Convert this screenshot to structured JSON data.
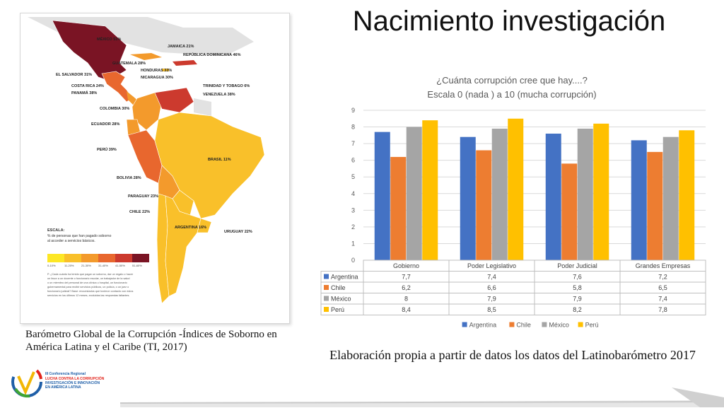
{
  "slide": {
    "title": "Nacimiento investigación",
    "map_caption": "Barómetro Global de la Corrupción -Índices de Soborno en América Latina y el Caribe (TI, 2017)",
    "source": "Elaboración propia a partir de datos los datos del Latinobarómetro 2017"
  },
  "map": {
    "labels": [
      "MÉXICO 51%",
      "JAMAICA 21%",
      "REPÚBLICA DOMINICANA 46%",
      "GUATEMALA 28%",
      "HONDURAS 33%",
      "NICARAGUA 30%",
      "EL SALVADOR 31%",
      "COSTA RICA 24%",
      "PANAMÁ 38%",
      "TRINIDAD Y TOBAGO 6%",
      "VENEZUELA 38%",
      "COLOMBIA 30%",
      "ECUADOR 28%",
      "PERÚ 39%",
      "BRASIL 11%",
      "BOLIVIA 28%",
      "PARAGUAY 23%",
      "CHILE 22%",
      "ARGENTINA 16%",
      "URUGUAY 22%"
    ],
    "legend_title": "ESCALA:",
    "legend_sub1": "% de personas que han pagado soborno",
    "legend_sub2": "al acceder a servicios básicos.",
    "legend_ticks": [
      "0-10%",
      "11-20%",
      "21-30%",
      "31-40%",
      "41-50%",
      "51-60%"
    ],
    "scale_colors": [
      "#fde725",
      "#f9c02a",
      "#f39a2c",
      "#e8672e",
      "#cc3a2e",
      "#7a1424"
    ],
    "note": [
      "P. ¿Cada cuánto ha tenido que pagar un soborno, dar un regalo o hacer",
      "un favor a un docente o funcionario escolar, un trabajador de la salud",
      "o un miembro del personal de una clínica u hospital, un funcionario",
      "gubernamental para recibir servicios públicos, un policía, o un juez o",
      "funcionario judicial? Base: encuestados que tuvieron contacto con estos",
      "servicios en los últimos 12 meses, excluidas las respuestas faltantes."
    ]
  },
  "chart_data": {
    "type": "bar",
    "title": "¿Cuánta corrupción cree que hay....?",
    "subtitle": "Escala 0 (nada ) a 10 (mucha corrupción)",
    "categories": [
      "Gobierno",
      "Poder Legislativo",
      "Poder Judicial",
      "Grandes Empresas"
    ],
    "series": [
      {
        "name": "Argentina",
        "color": "#4472c4",
        "values": [
          7.7,
          7.4,
          7.6,
          7.2
        ],
        "labels": [
          "7,7",
          "7,4",
          "7,6",
          "7,2"
        ]
      },
      {
        "name": "Chile",
        "color": "#ed7d31",
        "values": [
          6.2,
          6.6,
          5.8,
          6.5
        ],
        "labels": [
          "6,2",
          "6,6",
          "5,8",
          "6,5"
        ]
      },
      {
        "name": "México",
        "color": "#a5a5a5",
        "values": [
          8,
          7.9,
          7.9,
          7.4
        ],
        "labels": [
          "8",
          "7,9",
          "7,9",
          "7,4"
        ]
      },
      {
        "name": "Perú",
        "color": "#ffc000",
        "values": [
          8.4,
          8.5,
          8.2,
          7.8
        ],
        "labels": [
          "8,4",
          "8,5",
          "8,2",
          "7,8"
        ]
      }
    ],
    "ylim": [
      0,
      9
    ],
    "yticks": [
      "0",
      "1",
      "2",
      "3",
      "4",
      "5",
      "6",
      "7",
      "8",
      "9"
    ],
    "grid": true,
    "legend": "bottom",
    "data_table": true
  },
  "logo": {
    "line1": "III Conferencia Regional",
    "line2": "LUCHA CONTRA LA CORRUPCIÓN",
    "line3": "INVESTIGACIÓN E INNOVACIÓN",
    "line4": "EN AMÉRICA LATINA",
    "colors": [
      "#1f5fa8",
      "#e2231a",
      "#f2b705",
      "#3fa535"
    ]
  }
}
